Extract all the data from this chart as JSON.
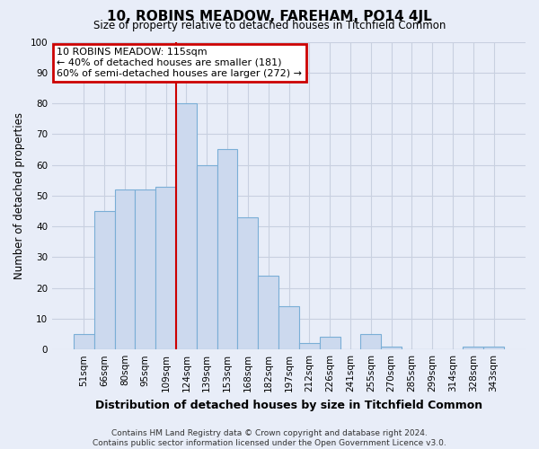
{
  "title": "10, ROBINS MEADOW, FAREHAM, PO14 4JL",
  "subtitle": "Size of property relative to detached houses in Titchfield Common",
  "xlabel": "Distribution of detached houses by size in Titchfield Common",
  "ylabel": "Number of detached properties",
  "categories": [
    "51sqm",
    "66sqm",
    "80sqm",
    "95sqm",
    "109sqm",
    "124sqm",
    "139sqm",
    "153sqm",
    "168sqm",
    "182sqm",
    "197sqm",
    "212sqm",
    "226sqm",
    "241sqm",
    "255sqm",
    "270sqm",
    "285sqm",
    "299sqm",
    "314sqm",
    "328sqm",
    "343sqm"
  ],
  "values": [
    5,
    45,
    52,
    52,
    53,
    80,
    60,
    65,
    43,
    24,
    14,
    2,
    4,
    0,
    5,
    1,
    0,
    0,
    0,
    1,
    1
  ],
  "bar_color": "#ccd9ee",
  "bar_edge_color": "#7aaed6",
  "highlight_bar_index": 4,
  "highlight_line_color": "#cc0000",
  "ylim": [
    0,
    100
  ],
  "annotation_box_text_line1": "10 ROBINS MEADOW: 115sqm",
  "annotation_box_text_line2": "← 40% of detached houses are smaller (181)",
  "annotation_box_text_line3": "60% of semi-detached houses are larger (272) →",
  "annotation_box_color": "white",
  "annotation_box_edge_color": "#cc0000",
  "footer_lines": [
    "Contains HM Land Registry data © Crown copyright and database right 2024.",
    "Contains public sector information licensed under the Open Government Licence v3.0."
  ],
  "background_color": "#e8edf8",
  "grid_color": "#c8d0e0",
  "title_fontsize": 11,
  "subtitle_fontsize": 8.5,
  "ylabel_fontsize": 8.5,
  "xlabel_fontsize": 9,
  "tick_fontsize": 7.5,
  "footer_fontsize": 6.5
}
